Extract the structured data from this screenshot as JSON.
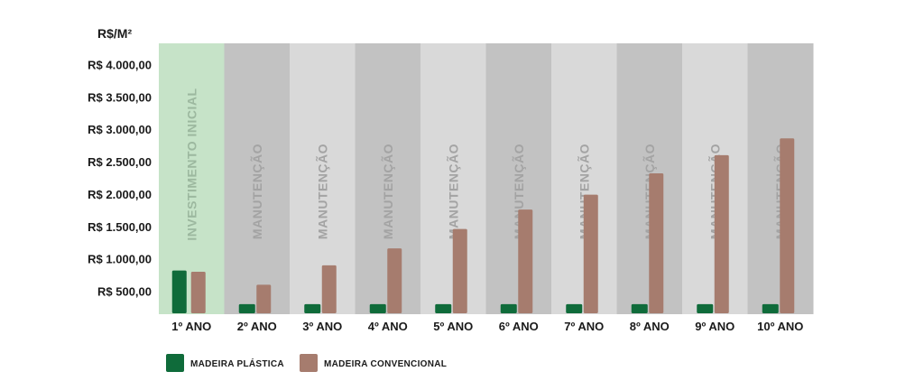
{
  "chart_data": {
    "type": "bar",
    "title": "",
    "ylabel": "R$/M²",
    "xlabel": "",
    "ylim": [
      200,
      4200
    ],
    "yticks": [
      {
        "value": 500,
        "label": "R$ 500,00"
      },
      {
        "value": 1000,
        "label": "R$ 1.000,00"
      },
      {
        "value": 1500,
        "label": "R$ 1.500,00"
      },
      {
        "value": 2000,
        "label": "R$ 2.000,00"
      },
      {
        "value": 2500,
        "label": "R$ 2.500,00"
      },
      {
        "value": 3000,
        "label": "R$ 3.000,00"
      },
      {
        "value": 3500,
        "label": "R$ 3.500,00"
      },
      {
        "value": 4000,
        "label": "R$ 4.000,00"
      }
    ],
    "categories": [
      "1º ANO",
      "2º ANO",
      "3º ANO",
      "4º ANO",
      "5º ANO",
      "6º ANO",
      "7º ANO",
      "8º ANO",
      "9º ANO",
      "10º ANO"
    ],
    "column_labels": [
      "INVESTIMENTO INICIAL",
      "MANUTENÇÃO",
      "MANUTENÇÃO",
      "MANUTENÇÃO",
      "MANUTENÇÃO",
      "MANUTENÇÃO",
      "MANUTENÇÃO",
      "MANUTENÇÃO",
      "MANUTENÇÃO",
      "MANUTENÇÃO"
    ],
    "series": [
      {
        "name": "MADEIRA PLÁSTICA",
        "color": "#0f6b3a",
        "values": [
          820,
          300,
          300,
          300,
          300,
          300,
          300,
          300,
          300,
          300
        ]
      },
      {
        "name": "MADEIRA CONVENCIONAL",
        "color": "#a67c6e",
        "values": [
          800,
          600,
          900,
          1160,
          1460,
          1760,
          1990,
          2320,
          2600,
          2860
        ]
      }
    ],
    "colors": {
      "highlight_column": "#c6e3c8",
      "column_dark": "#c2c2c2",
      "column_light": "#d9d9d9",
      "column_text_highlight": "#9cb89f",
      "column_text": "#a3a3a3"
    },
    "legend": "bottom-left",
    "grid": false
  }
}
